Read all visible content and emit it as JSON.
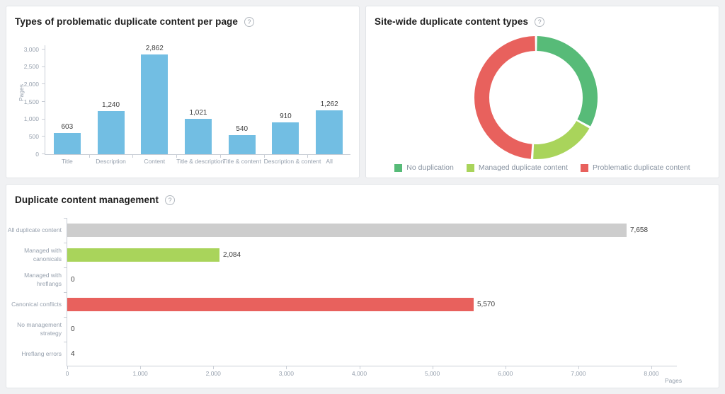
{
  "ui": {
    "help_glyph": "?",
    "background": "#f0f1f3",
    "panel_border": "#e3e5e8",
    "axis_color": "#c9ced6",
    "tick_text_color": "#97a1ae",
    "value_text_color": "#3f3f3f"
  },
  "chart_data": [
    {
      "type": "bar",
      "title": "Types of problematic duplicate content per page",
      "ylabel": "Pages",
      "xlabel": "",
      "categories": [
        "Title",
        "Description",
        "Content",
        "Title & description",
        "Title & content",
        "Description & content",
        "All"
      ],
      "values": [
        603,
        1240,
        2862,
        1021,
        540,
        910,
        1262
      ],
      "value_labels": [
        "603",
        "1,240",
        "2,862",
        "1,021",
        "540",
        "910",
        "1,262"
      ],
      "bar_color": "#72bee3",
      "ylim": [
        0,
        3000
      ],
      "ytick_step": 500,
      "ytick_labels": [
        "0",
        "500",
        "1,000",
        "1,500",
        "2,000",
        "2,500",
        "3,000"
      ],
      "grid": false,
      "legend_position": "none"
    },
    {
      "type": "pie",
      "subtype": "donut",
      "title": "Site-wide duplicate content types",
      "values_shown": false,
      "legend_position": "bottom",
      "segments": [
        {
          "label": "No duplication",
          "color": "#57bb78",
          "percent_estimate": 33
        },
        {
          "label": "Managed duplicate content",
          "color": "#a9d45b",
          "percent_estimate": 18
        },
        {
          "label": "Problematic duplicate content",
          "color": "#e8615d",
          "percent_estimate": 49
        }
      ]
    },
    {
      "type": "bar",
      "orientation": "horizontal",
      "title": "Duplicate content management",
      "xlabel": "Pages",
      "ylabel": "",
      "categories": [
        "All duplicate content",
        "Managed with canonicals",
        "Managed with hreflangs",
        "Canonical conflicts",
        "No management strategy",
        "Hreflang errors"
      ],
      "values": [
        7658,
        2084,
        0,
        5570,
        0,
        4
      ],
      "value_labels": [
        "7,658",
        "2,084",
        "0",
        "5,570",
        "0",
        "4"
      ],
      "colors": [
        "#cdcdcd",
        "#a9d45b",
        "#cdcdcd",
        "#e8615d",
        "#cdcdcd",
        "#cdcdcd"
      ],
      "xlim": [
        0,
        8000
      ],
      "xtick_step": 1000,
      "xtick_labels": [
        "0",
        "1,000",
        "2,000",
        "3,000",
        "4,000",
        "5,000",
        "6,000",
        "7,000",
        "8,000"
      ],
      "grid": false,
      "legend_position": "none"
    }
  ]
}
